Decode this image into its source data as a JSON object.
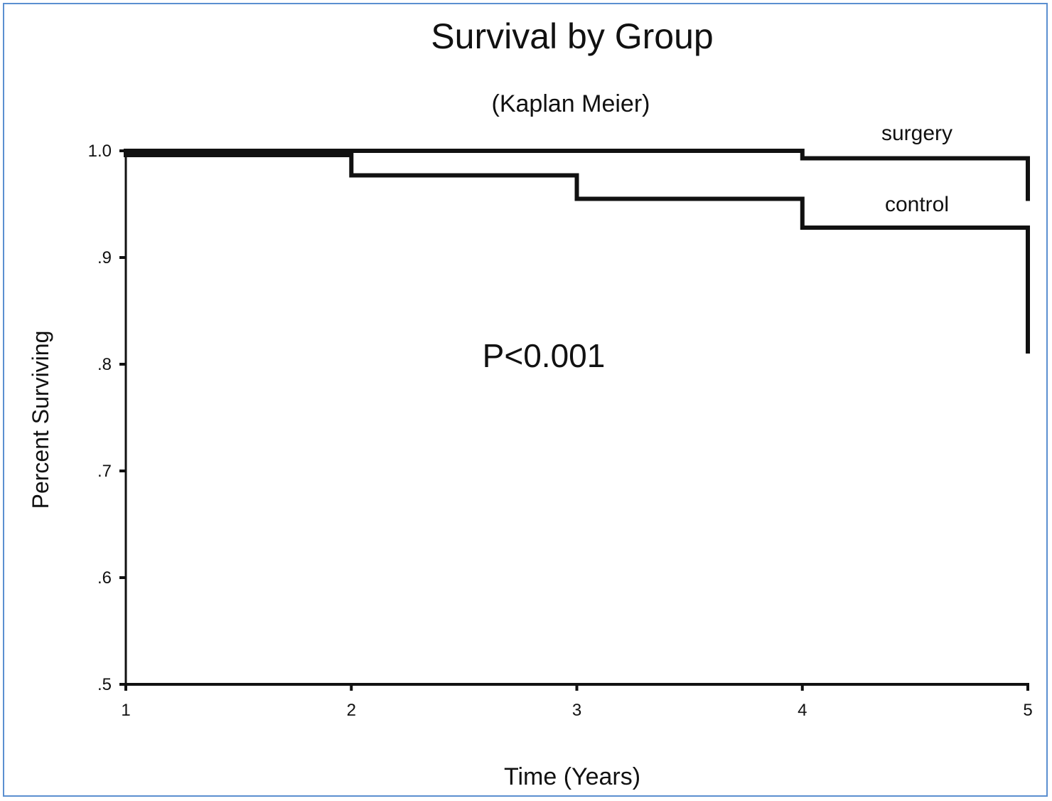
{
  "chart_data": {
    "type": "line",
    "title": "Survival by Group",
    "subtitle": "(Kaplan Meier)",
    "xlabel": "Time (Years)",
    "ylabel": "Percent Surviving",
    "xlim": [
      1,
      5
    ],
    "ylim": [
      0.5,
      1.0
    ],
    "x_ticks": [
      "1",
      "2",
      "3",
      "4",
      "5"
    ],
    "y_ticks": [
      ".5",
      ".6",
      ".7",
      ".8",
      ".9",
      "1.0"
    ],
    "y_tick_values": [
      0.5,
      0.6,
      0.7,
      0.8,
      0.9,
      1.0
    ],
    "step": true,
    "grid": false,
    "series": [
      {
        "name": "surgery",
        "points": [
          [
            1,
            1.0
          ],
          [
            4,
            1.0
          ],
          [
            4,
            0.993
          ],
          [
            5,
            0.993
          ],
          [
            5,
            0.955
          ]
        ]
      },
      {
        "name": "control",
        "points": [
          [
            1,
            0.996
          ],
          [
            2,
            0.996
          ],
          [
            2,
            0.977
          ],
          [
            3,
            0.977
          ],
          [
            3,
            0.955
          ],
          [
            4,
            0.955
          ],
          [
            4,
            0.928
          ],
          [
            5,
            0.928
          ],
          [
            5,
            0.812
          ]
        ]
      }
    ],
    "annotation": "P<0.001"
  }
}
